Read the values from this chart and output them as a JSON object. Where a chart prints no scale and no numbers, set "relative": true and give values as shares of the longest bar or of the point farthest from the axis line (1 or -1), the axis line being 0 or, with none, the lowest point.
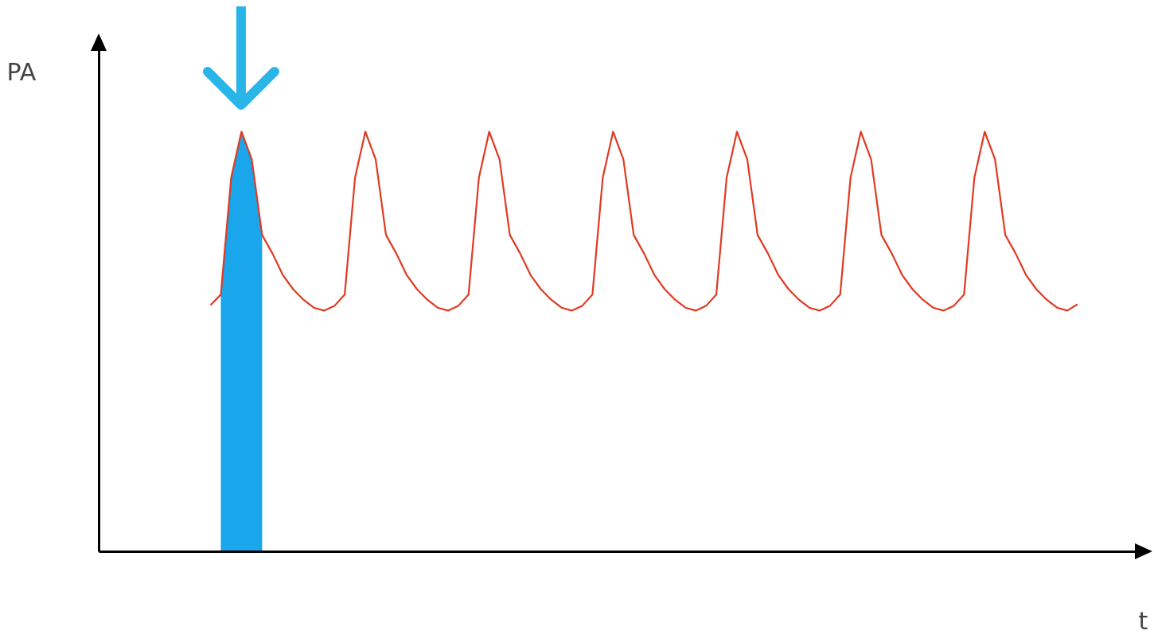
{
  "chart_data": {
    "type": "line",
    "relative": true,
    "xlabel": "t",
    "annotations": [
      "PA"
    ],
    "grid": false,
    "categories": [
      null,
      null,
      null,
      null,
      null,
      null,
      null,
      null,
      null,
      null,
      null,
      null,
      null,
      null,
      null,
      null,
      null,
      null,
      null,
      null,
      null,
      null,
      null,
      null,
      null,
      null,
      null,
      null,
      null,
      null,
      null,
      null,
      null,
      null,
      null,
      null,
      null,
      null,
      null,
      null,
      null,
      null,
      null,
      null,
      null,
      null,
      null,
      null,
      null,
      null,
      null,
      null,
      null,
      null,
      null,
      null,
      null,
      null,
      null,
      null,
      null,
      null,
      null,
      null,
      null,
      null,
      null,
      null,
      null,
      null,
      null,
      null,
      null,
      null,
      null,
      null,
      null,
      null,
      null,
      null,
      null,
      null,
      null,
      null,
      null
    ],
    "series": [
      {
        "type": "area",
        "color": "#19a6ea",
        "values": [
          null,
          0.612,
          0.89,
          1.0,
          0.934,
          0.754,
          null,
          null,
          null,
          null,
          null,
          null,
          null,
          null,
          null,
          null,
          null,
          null,
          null,
          null,
          null,
          null,
          null,
          null,
          null,
          null,
          null,
          null,
          null,
          null,
          null,
          null,
          null,
          null,
          null,
          null,
          null,
          null,
          null,
          null,
          null,
          null,
          null,
          null,
          null,
          null,
          null,
          null,
          null,
          null,
          null,
          null,
          null,
          null,
          null,
          null,
          null,
          null,
          null,
          null,
          null,
          null,
          null,
          null,
          null,
          null,
          null,
          null,
          null,
          null,
          null,
          null,
          null,
          null,
          null,
          null,
          null,
          null,
          null,
          null,
          null,
          null,
          null,
          null,
          null
        ]
      },
      {
        "type": "line",
        "color": "#e03a22",
        "values": [
          0.587,
          0.612,
          0.89,
          1.0,
          0.934,
          0.754,
          0.71,
          0.659,
          0.625,
          0.6,
          0.581,
          0.574,
          0.585,
          0.612,
          0.89,
          1.0,
          0.934,
          0.754,
          0.71,
          0.659,
          0.625,
          0.6,
          0.581,
          0.574,
          0.585,
          0.612,
          0.89,
          1.0,
          0.934,
          0.754,
          0.71,
          0.659,
          0.625,
          0.6,
          0.581,
          0.574,
          0.585,
          0.612,
          0.89,
          1.0,
          0.934,
          0.754,
          0.71,
          0.659,
          0.625,
          0.6,
          0.581,
          0.574,
          0.585,
          0.612,
          0.89,
          1.0,
          0.934,
          0.754,
          0.71,
          0.659,
          0.625,
          0.6,
          0.581,
          0.574,
          0.585,
          0.612,
          0.89,
          1.0,
          0.934,
          0.754,
          0.71,
          0.659,
          0.625,
          0.6,
          0.581,
          0.574,
          0.585,
          0.612,
          0.89,
          1.0,
          0.934,
          0.754,
          0.71,
          0.659,
          0.625,
          0.6,
          0.581,
          0.574,
          0.589
        ]
      }
    ]
  }
}
